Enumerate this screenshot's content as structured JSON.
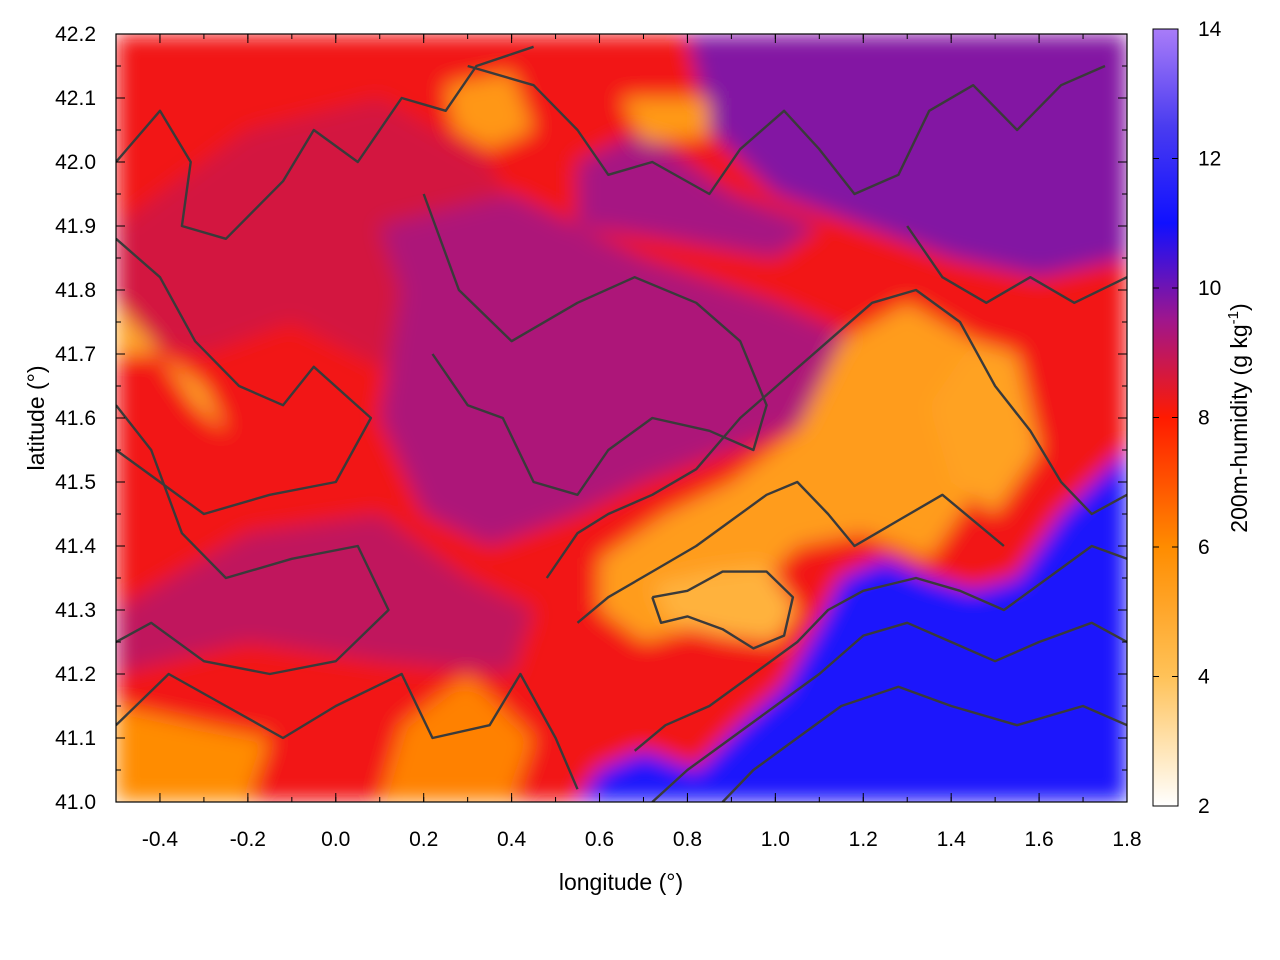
{
  "chart_data": {
    "type": "heatmap",
    "title": "",
    "xlabel": "longitude (°)",
    "ylabel": "latitude (°)",
    "xlim": [
      -0.5,
      1.8
    ],
    "ylim": [
      41.0,
      42.2
    ],
    "xticks": [
      "-0.4",
      "-0.2",
      "0.0",
      "0.2",
      "0.4",
      "0.6",
      "0.8",
      "1.0",
      "1.2",
      "1.4",
      "1.6",
      "1.8"
    ],
    "xtick_values": [
      -0.4,
      -0.2,
      0.0,
      0.2,
      0.4,
      0.6,
      0.8,
      1.0,
      1.2,
      1.4,
      1.6,
      1.8
    ],
    "yticks": [
      "41.0",
      "41.1",
      "41.2",
      "41.3",
      "41.4",
      "41.5",
      "41.6",
      "41.7",
      "41.8",
      "41.9",
      "42.0",
      "42.1",
      "42.2"
    ],
    "ytick_values": [
      41.0,
      41.1,
      41.2,
      41.3,
      41.4,
      41.5,
      41.6,
      41.7,
      41.8,
      41.9,
      42.0,
      42.1,
      42.2
    ],
    "colorbar": {
      "label_main": "200m-humidity (g kg",
      "label_sup": "-1",
      "label_end": ")",
      "range": [
        2,
        14
      ],
      "ticks": [
        "2",
        "4",
        "6",
        "8",
        "10",
        "12",
        "14"
      ],
      "tick_values": [
        2,
        4,
        6,
        8,
        10,
        12,
        14
      ],
      "stops": [
        {
          "value": 2,
          "color": "#ffffff"
        },
        {
          "value": 4,
          "color": "#ffc258"
        },
        {
          "value": 6,
          "color": "#ff8c00"
        },
        {
          "value": 8,
          "color": "#ff1a00"
        },
        {
          "value": 9.5,
          "color": "#a0168c"
        },
        {
          "value": 11,
          "color": "#1010ff"
        },
        {
          "value": 12.5,
          "color": "#4a3cf0"
        },
        {
          "value": 14,
          "color": "#a97cf8"
        }
      ]
    },
    "regions": [
      {
        "name": "background",
        "polygon": [
          [
            -0.5,
            41.0
          ],
          [
            1.8,
            41.0
          ],
          [
            1.8,
            42.2
          ],
          [
            -0.5,
            42.2
          ]
        ],
        "value": 8.2
      },
      {
        "name": "northwest",
        "polygon": [
          [
            -0.5,
            41.9
          ],
          [
            -0.2,
            42.05
          ],
          [
            0.1,
            42.1
          ],
          [
            0.35,
            42.0
          ],
          [
            0.45,
            41.85
          ],
          [
            0.3,
            41.72
          ],
          [
            0.1,
            41.68
          ],
          [
            -0.1,
            41.75
          ],
          [
            -0.3,
            41.7
          ],
          [
            -0.5,
            41.72
          ]
        ],
        "value": 8.7
      },
      {
        "name": "central-north",
        "polygon": [
          [
            0.1,
            41.9
          ],
          [
            0.4,
            41.95
          ],
          [
            0.7,
            41.85
          ],
          [
            1.0,
            41.78
          ],
          [
            1.2,
            41.72
          ],
          [
            1.1,
            41.6
          ],
          [
            0.9,
            41.55
          ],
          [
            0.7,
            41.5
          ],
          [
            0.55,
            41.45
          ],
          [
            0.35,
            41.4
          ],
          [
            0.2,
            41.45
          ],
          [
            0.1,
            41.6
          ],
          [
            0.15,
            41.8
          ]
        ],
        "value": 9.3
      },
      {
        "name": "west-central",
        "polygon": [
          [
            -0.5,
            41.3
          ],
          [
            -0.2,
            41.42
          ],
          [
            0.1,
            41.45
          ],
          [
            0.3,
            41.35
          ],
          [
            0.45,
            41.3
          ],
          [
            0.4,
            41.2
          ],
          [
            0.1,
            41.22
          ],
          [
            -0.2,
            41.25
          ],
          [
            -0.5,
            41.2
          ]
        ],
        "value": 9.0
      },
      {
        "name": "northeast",
        "polygon": [
          [
            0.8,
            42.2
          ],
          [
            1.8,
            42.2
          ],
          [
            1.8,
            41.85
          ],
          [
            1.6,
            41.82
          ],
          [
            1.4,
            41.85
          ],
          [
            1.2,
            41.9
          ],
          [
            1.0,
            41.95
          ],
          [
            0.85,
            42.05
          ]
        ],
        "value": 9.8
      },
      {
        "name": "north-center-strip",
        "polygon": [
          [
            0.55,
            42.0
          ],
          [
            0.7,
            42.05
          ],
          [
            0.9,
            41.95
          ],
          [
            1.1,
            41.9
          ],
          [
            1.0,
            41.85
          ],
          [
            0.75,
            41.88
          ],
          [
            0.55,
            41.9
          ]
        ],
        "value": 9.4
      },
      {
        "name": "dry-plume",
        "polygon": [
          [
            0.6,
            41.38
          ],
          [
            0.75,
            41.45
          ],
          [
            0.9,
            41.5
          ],
          [
            1.05,
            41.58
          ],
          [
            1.15,
            41.72
          ],
          [
            1.3,
            41.78
          ],
          [
            1.45,
            41.72
          ],
          [
            1.55,
            41.6
          ],
          [
            1.45,
            41.48
          ],
          [
            1.35,
            41.38
          ],
          [
            1.2,
            41.42
          ],
          [
            1.05,
            41.4
          ],
          [
            0.95,
            41.33
          ],
          [
            0.85,
            41.28
          ],
          [
            0.7,
            41.25
          ],
          [
            0.6,
            41.3
          ]
        ],
        "value": 5.4
      },
      {
        "name": "dry-core",
        "polygon": [
          [
            0.72,
            41.34
          ],
          [
            0.85,
            41.36
          ],
          [
            0.98,
            41.37
          ],
          [
            1.05,
            41.3
          ],
          [
            1.0,
            41.25
          ],
          [
            0.88,
            41.26
          ],
          [
            0.76,
            41.28
          ]
        ],
        "value": 4.6
      },
      {
        "name": "dry-northeast",
        "polygon": [
          [
            1.35,
            41.62
          ],
          [
            1.45,
            41.72
          ],
          [
            1.55,
            41.7
          ],
          [
            1.6,
            41.55
          ],
          [
            1.5,
            41.45
          ],
          [
            1.4,
            41.5
          ]
        ],
        "value": 5.2
      },
      {
        "name": "dry-west",
        "polygon": [
          [
            -0.5,
            41.78
          ],
          [
            -0.42,
            41.72
          ],
          [
            -0.32,
            41.62
          ],
          [
            -0.25,
            41.58
          ],
          [
            -0.3,
            41.65
          ],
          [
            -0.4,
            41.7
          ],
          [
            -0.5,
            41.7
          ]
        ],
        "value": 5.0
      },
      {
        "name": "dry-north-patches",
        "polygon": [
          [
            0.25,
            42.12
          ],
          [
            0.4,
            42.14
          ],
          [
            0.45,
            42.05
          ],
          [
            0.35,
            42.02
          ],
          [
            0.27,
            42.05
          ]
        ],
        "value": 5.6
      },
      {
        "name": "dry-north-patches-2",
        "polygon": [
          [
            0.65,
            42.1
          ],
          [
            0.85,
            42.1
          ],
          [
            0.85,
            42.04
          ],
          [
            0.7,
            42.03
          ]
        ],
        "value": 5.5
      },
      {
        "name": "dry-southwest",
        "polygon": [
          [
            -0.5,
            41.0
          ],
          [
            -0.2,
            41.0
          ],
          [
            -0.15,
            41.1
          ],
          [
            -0.3,
            41.12
          ],
          [
            -0.5,
            41.15
          ]
        ],
        "value": 6.0
      },
      {
        "name": "dry-south-center",
        "polygon": [
          [
            0.1,
            41.0
          ],
          [
            0.4,
            41.0
          ],
          [
            0.45,
            41.1
          ],
          [
            0.3,
            41.2
          ],
          [
            0.15,
            41.12
          ]
        ],
        "value": 6.2
      },
      {
        "name": "sea-moist",
        "polygon": [
          [
            0.55,
            41.0
          ],
          [
            1.8,
            41.0
          ],
          [
            1.8,
            41.55
          ],
          [
            1.65,
            41.45
          ],
          [
            1.55,
            41.35
          ],
          [
            1.45,
            41.33
          ],
          [
            1.35,
            41.35
          ],
          [
            1.25,
            41.38
          ],
          [
            1.15,
            41.35
          ],
          [
            1.1,
            41.28
          ],
          [
            1.02,
            41.18
          ],
          [
            0.92,
            41.12
          ],
          [
            0.82,
            41.05
          ],
          [
            0.7,
            41.08
          ],
          [
            0.6,
            41.05
          ]
        ],
        "value": 11.3
      }
    ],
    "contours": [
      [
        [
          -0.5,
          42.0
        ],
        [
          -0.4,
          42.08
        ],
        [
          -0.33,
          42.0
        ],
        [
          -0.35,
          41.9
        ],
        [
          -0.25,
          41.88
        ],
        [
          -0.12,
          41.97
        ],
        [
          -0.05,
          42.05
        ],
        [
          0.05,
          42.0
        ],
        [
          0.15,
          42.1
        ],
        [
          0.25,
          42.08
        ],
        [
          0.32,
          42.15
        ],
        [
          0.45,
          42.18
        ]
      ],
      [
        [
          -0.5,
          41.88
        ],
        [
          -0.4,
          41.82
        ],
        [
          -0.32,
          41.72
        ],
        [
          -0.22,
          41.65
        ],
        [
          -0.12,
          41.62
        ],
        [
          -0.05,
          41.68
        ],
        [
          0.08,
          41.6
        ],
        [
          0.0,
          41.5
        ],
        [
          -0.15,
          41.48
        ],
        [
          -0.3,
          41.45
        ],
        [
          -0.4,
          41.5
        ],
        [
          -0.5,
          41.55
        ]
      ],
      [
        [
          -0.5,
          41.62
        ],
        [
          -0.42,
          41.55
        ],
        [
          -0.35,
          41.42
        ],
        [
          -0.25,
          41.35
        ],
        [
          -0.1,
          41.38
        ],
        [
          0.05,
          41.4
        ],
        [
          0.12,
          41.3
        ],
        [
          0.0,
          41.22
        ],
        [
          -0.15,
          41.2
        ],
        [
          -0.3,
          41.22
        ],
        [
          -0.42,
          41.28
        ],
        [
          -0.5,
          41.25
        ]
      ],
      [
        [
          -0.5,
          41.12
        ],
        [
          -0.38,
          41.2
        ],
        [
          -0.25,
          41.15
        ],
        [
          -0.12,
          41.1
        ],
        [
          0.0,
          41.15
        ],
        [
          0.15,
          41.2
        ],
        [
          0.22,
          41.1
        ],
        [
          0.35,
          41.12
        ],
        [
          0.42,
          41.2
        ],
        [
          0.5,
          41.1
        ],
        [
          0.55,
          41.02
        ]
      ],
      [
        [
          0.2,
          41.95
        ],
        [
          0.28,
          41.8
        ],
        [
          0.4,
          41.72
        ],
        [
          0.55,
          41.78
        ],
        [
          0.68,
          41.82
        ],
        [
          0.82,
          41.78
        ],
        [
          0.92,
          41.72
        ],
        [
          0.98,
          41.62
        ],
        [
          0.95,
          41.55
        ],
        [
          0.85,
          41.58
        ],
        [
          0.72,
          41.6
        ],
        [
          0.62,
          41.55
        ],
        [
          0.55,
          41.48
        ],
        [
          0.45,
          41.5
        ],
        [
          0.38,
          41.6
        ],
        [
          0.3,
          41.62
        ],
        [
          0.22,
          41.7
        ]
      ],
      [
        [
          0.3,
          42.15
        ],
        [
          0.45,
          42.12
        ],
        [
          0.55,
          42.05
        ],
        [
          0.62,
          41.98
        ],
        [
          0.72,
          42.0
        ],
        [
          0.85,
          41.95
        ],
        [
          0.92,
          42.02
        ],
        [
          1.02,
          42.08
        ],
        [
          1.1,
          42.02
        ],
        [
          1.18,
          41.95
        ],
        [
          1.28,
          41.98
        ],
        [
          1.35,
          42.08
        ],
        [
          1.45,
          42.12
        ],
        [
          1.55,
          42.05
        ],
        [
          1.65,
          42.12
        ],
        [
          1.75,
          42.15
        ]
      ],
      [
        [
          0.48,
          41.35
        ],
        [
          0.55,
          41.42
        ],
        [
          0.62,
          41.45
        ],
        [
          0.72,
          41.48
        ],
        [
          0.82,
          41.52
        ],
        [
          0.92,
          41.6
        ],
        [
          1.02,
          41.66
        ],
        [
          1.12,
          41.72
        ],
        [
          1.22,
          41.78
        ],
        [
          1.32,
          41.8
        ],
        [
          1.42,
          41.75
        ],
        [
          1.5,
          41.65
        ],
        [
          1.58,
          41.58
        ],
        [
          1.65,
          41.5
        ],
        [
          1.72,
          41.45
        ],
        [
          1.8,
          41.48
        ]
      ],
      [
        [
          0.55,
          41.28
        ],
        [
          0.62,
          41.32
        ],
        [
          0.72,
          41.36
        ],
        [
          0.82,
          41.4
        ],
        [
          0.9,
          41.44
        ],
        [
          0.98,
          41.48
        ],
        [
          1.05,
          41.5
        ],
        [
          1.12,
          41.45
        ],
        [
          1.18,
          41.4
        ],
        [
          1.28,
          41.44
        ],
        [
          1.38,
          41.48
        ],
        [
          1.45,
          41.44
        ],
        [
          1.52,
          41.4
        ]
      ],
      [
        [
          0.72,
          41.32
        ],
        [
          0.8,
          41.33
        ],
        [
          0.88,
          41.36
        ],
        [
          0.98,
          41.36
        ],
        [
          1.04,
          41.32
        ],
        [
          1.02,
          41.26
        ],
        [
          0.95,
          41.24
        ],
        [
          0.88,
          41.27
        ],
        [
          0.8,
          41.29
        ],
        [
          0.74,
          41.28
        ],
        [
          0.72,
          41.32
        ]
      ],
      [
        [
          0.68,
          41.08
        ],
        [
          0.75,
          41.12
        ],
        [
          0.85,
          41.15
        ],
        [
          0.95,
          41.2
        ],
        [
          1.05,
          41.25
        ],
        [
          1.12,
          41.3
        ],
        [
          1.2,
          41.33
        ],
        [
          1.32,
          41.35
        ],
        [
          1.42,
          41.33
        ],
        [
          1.52,
          41.3
        ],
        [
          1.62,
          41.35
        ],
        [
          1.72,
          41.4
        ],
        [
          1.8,
          41.38
        ]
      ],
      [
        [
          0.72,
          41.0
        ],
        [
          0.8,
          41.05
        ],
        [
          0.9,
          41.1
        ],
        [
          1.0,
          41.15
        ],
        [
          1.1,
          41.2
        ],
        [
          1.2,
          41.26
        ],
        [
          1.3,
          41.28
        ],
        [
          1.4,
          41.25
        ],
        [
          1.5,
          41.22
        ],
        [
          1.6,
          41.25
        ],
        [
          1.72,
          41.28
        ],
        [
          1.8,
          41.25
        ]
      ],
      [
        [
          0.88,
          41.0
        ],
        [
          0.95,
          41.05
        ],
        [
          1.05,
          41.1
        ],
        [
          1.15,
          41.15
        ],
        [
          1.28,
          41.18
        ],
        [
          1.4,
          41.15
        ],
        [
          1.55,
          41.12
        ],
        [
          1.7,
          41.15
        ],
        [
          1.8,
          41.12
        ]
      ],
      [
        [
          1.3,
          41.9
        ],
        [
          1.38,
          41.82
        ],
        [
          1.48,
          41.78
        ],
        [
          1.58,
          41.82
        ],
        [
          1.68,
          41.78
        ],
        [
          1.8,
          41.82
        ]
      ]
    ]
  }
}
